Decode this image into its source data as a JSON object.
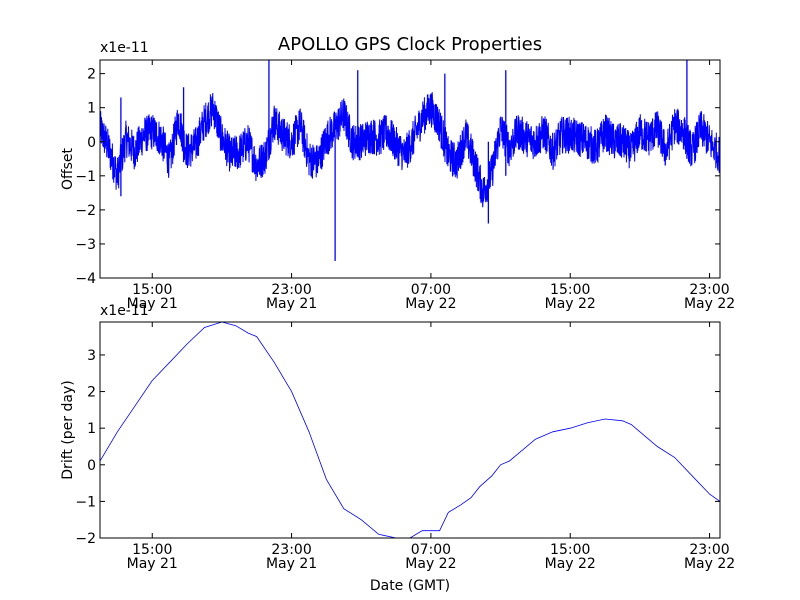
{
  "chart_data": {
    "type": "line",
    "title": "APOLLO GPS Clock Properties",
    "xlabel": "Date (GMT)",
    "x_tick_labels": [
      {
        "time": "15:00",
        "date": "May 21",
        "hour": 15
      },
      {
        "time": "23:00",
        "date": "May 21",
        "hour": 23
      },
      {
        "time": "07:00",
        "date": "May 22",
        "hour": 31
      },
      {
        "time": "15:00",
        "date": "May 22",
        "hour": 39
      },
      {
        "time": "23:00",
        "date": "May 22",
        "hour": 47
      }
    ],
    "xlim_hours": [
      12.0,
      47.6
    ],
    "charts": [
      {
        "type": "line",
        "ylabel": "Offset",
        "exponent_label": "x1e-11",
        "ylim": [
          -4,
          2.4
        ],
        "yticks": [
          -4,
          -3,
          -2,
          -1,
          0,
          1,
          2
        ],
        "color": "#0000ff",
        "series": [
          {
            "name": "Offset",
            "x_hours": [
              12.0,
              12.5,
              13.0,
              13.5,
              14.0,
              14.5,
              15.0,
              15.5,
              16.0,
              16.5,
              17.0,
              17.5,
              18.0,
              18.5,
              19.0,
              19.5,
              20.0,
              20.5,
              21.0,
              21.5,
              22.0,
              22.5,
              23.0,
              23.5,
              24.0,
              24.5,
              25.0,
              25.5,
              26.0,
              26.5,
              27.0,
              27.5,
              28.0,
              28.5,
              29.0,
              29.5,
              30.0,
              30.5,
              31.0,
              31.5,
              32.0,
              32.5,
              33.0,
              33.5,
              34.0,
              34.5,
              35.0,
              35.5,
              36.0,
              36.5,
              37.0,
              37.5,
              38.0,
              38.5,
              39.0,
              39.5,
              40.0,
              40.5,
              41.0,
              41.5,
              42.0,
              42.5,
              43.0,
              43.5,
              44.0,
              44.5,
              45.0,
              45.5,
              46.0,
              46.5,
              47.0,
              47.6
            ],
            "values": [
              0.4,
              -0.2,
              -1.0,
              0.1,
              -0.3,
              0.2,
              0.3,
              0.1,
              -0.6,
              0.7,
              -0.3,
              -0.1,
              0.6,
              1.0,
              0.1,
              -0.4,
              -0.3,
              0.0,
              -0.7,
              -0.4,
              0.6,
              0.2,
              0.0,
              0.5,
              -0.5,
              -0.6,
              0.1,
              0.4,
              0.8,
              0.0,
              0.0,
              0.2,
              0.1,
              0.3,
              -0.1,
              -0.4,
              0.1,
              0.7,
              1.0,
              0.5,
              -0.4,
              -0.6,
              0.2,
              -0.6,
              -1.5,
              -0.9,
              0.4,
              -0.2,
              0.3,
              0.1,
              0.0,
              0.3,
              -0.3,
              0.2,
              0.2,
              0.1,
              0.0,
              -0.2,
              0.3,
              0.0,
              0.0,
              -0.3,
              0.3,
              0.1,
              0.4,
              -0.3,
              0.5,
              0.3,
              -0.3,
              0.4,
              0.0,
              -0.4
            ],
            "spikes": [
              {
                "x_hour": 21.7,
                "low": -0.4,
                "high": 2.4
              },
              {
                "x_hour": 25.5,
                "low": -3.5,
                "high": 0.2
              },
              {
                "x_hour": 34.3,
                "low": -2.4,
                "high": 0.0
              },
              {
                "x_hour": 35.3,
                "low": -1.0,
                "high": 2.1
              },
              {
                "x_hour": 26.8,
                "low": -0.3,
                "high": 2.1
              },
              {
                "x_hour": 31.8,
                "low": -0.2,
                "high": 2.0
              },
              {
                "x_hour": 45.7,
                "low": -0.5,
                "high": 2.4
              },
              {
                "x_hour": 16.8,
                "low": -0.6,
                "high": 1.6
              },
              {
                "x_hour": 13.2,
                "low": -1.6,
                "high": 1.3
              }
            ]
          }
        ]
      },
      {
        "type": "line",
        "ylabel": "Drift (per day)",
        "exponent_label": "x1e-11",
        "ylim": [
          -2,
          3.9
        ],
        "yticks": [
          -2,
          -1,
          0,
          1,
          2,
          3
        ],
        "color": "#0000ff",
        "series": [
          {
            "name": "Drift",
            "x_hours": [
              12.0,
              13.0,
              14.0,
              15.0,
              16.0,
              17.0,
              18.0,
              19.0,
              19.8,
              20.5,
              21.0,
              22.0,
              23.0,
              24.0,
              25.0,
              26.0,
              27.0,
              28.0,
              29.0,
              29.8,
              30.5,
              31.0,
              31.5,
              32.0,
              32.7,
              33.3,
              33.8,
              34.5,
              35.0,
              35.5,
              36.0,
              37.0,
              38.0,
              39.0,
              40.0,
              41.0,
              42.0,
              42.5,
              43.0,
              43.5,
              44.0,
              45.0,
              46.0,
              47.0,
              47.6
            ],
            "values": [
              0.1,
              0.9,
              1.6,
              2.3,
              2.8,
              3.3,
              3.75,
              3.9,
              3.8,
              3.6,
              3.5,
              2.8,
              2.0,
              0.9,
              -0.4,
              -1.2,
              -1.5,
              -1.9,
              -2.0,
              -2.0,
              -1.8,
              -1.8,
              -1.8,
              -1.3,
              -1.1,
              -0.9,
              -0.6,
              -0.3,
              0.0,
              0.1,
              0.3,
              0.7,
              0.9,
              1.0,
              1.15,
              1.25,
              1.2,
              1.1,
              0.9,
              0.7,
              0.5,
              0.2,
              -0.3,
              -0.8,
              -1.0
            ]
          }
        ]
      }
    ]
  }
}
